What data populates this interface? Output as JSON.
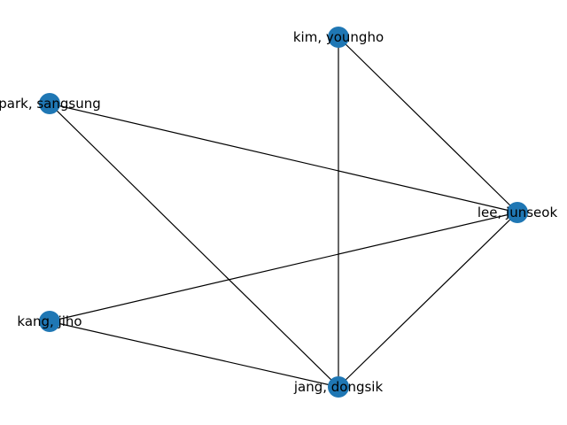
{
  "graph": {
    "node_color": "#1f77b4",
    "edge_color": "#000000",
    "nodes": [
      {
        "id": "kim",
        "label": "kim, youngho"
      },
      {
        "id": "park",
        "label": "park, sangsung"
      },
      {
        "id": "lee",
        "label": "lee, junseok"
      },
      {
        "id": "kang",
        "label": "kang, jiho"
      },
      {
        "id": "jang",
        "label": "jang, dongsik"
      }
    ],
    "edges": [
      [
        "kim",
        "lee"
      ],
      [
        "kim",
        "jang"
      ],
      [
        "park",
        "lee"
      ],
      [
        "park",
        "jang"
      ],
      [
        "kang",
        "lee"
      ],
      [
        "kang",
        "jang"
      ],
      [
        "lee",
        "jang"
      ]
    ]
  }
}
